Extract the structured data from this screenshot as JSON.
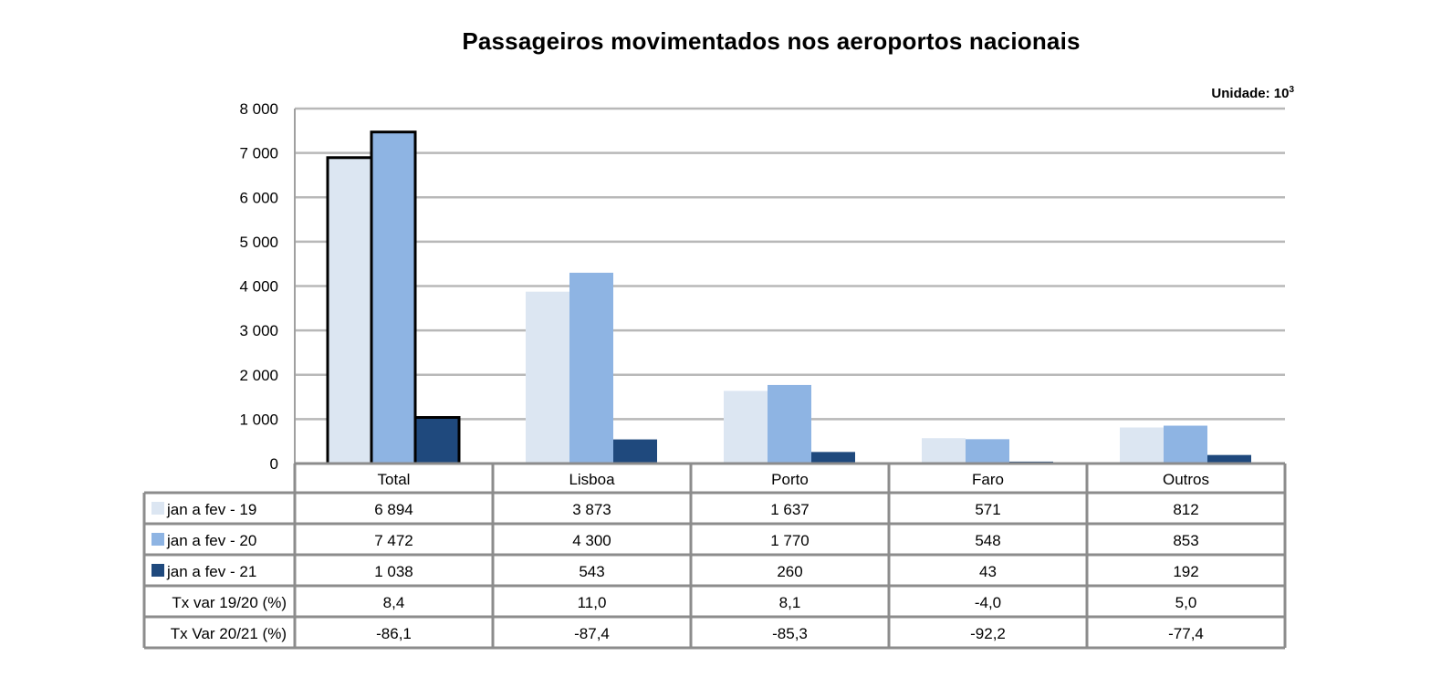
{
  "chart_data": {
    "type": "bar",
    "title": "Passageiros movimentados nos aeroportos nacionais",
    "unit": "Unidade: 10",
    "unit_exponent": "3",
    "categories": [
      "Total",
      "Lisboa",
      "Porto",
      "Faro",
      "Outros"
    ],
    "series": [
      {
        "name": "jan a fev - 19",
        "color": "#dce6f2",
        "values": [
          6894,
          3873,
          1637,
          571,
          812
        ]
      },
      {
        "name": "jan a fev - 20",
        "color": "#8eb4e3",
        "values": [
          7472,
          4300,
          1770,
          548,
          853
        ]
      },
      {
        "name": "jan a fev - 21",
        "color": "#1f497d",
        "values": [
          1038,
          543,
          260,
          43,
          192
        ]
      }
    ],
    "ylim": [
      0,
      8000
    ],
    "yticks": [
      0,
      1000,
      2000,
      3000,
      4000,
      5000,
      6000,
      7000,
      8000
    ],
    "ytick_labels": [
      "0",
      "1 000",
      "2 000",
      "3 000",
      "4 000",
      "5 000",
      "6 000",
      "7 000",
      "8 000"
    ],
    "grid": true,
    "data_table": {
      "rows": [
        {
          "label": "jan a fev - 19",
          "swatch": "#dce6f2",
          "cells": [
            "6 894",
            "3 873",
            "1 637",
            "571",
            "812"
          ]
        },
        {
          "label": "jan a fev - 20",
          "swatch": "#8eb4e3",
          "cells": [
            "7 472",
            "4 300",
            "1 770",
            "548",
            "853"
          ]
        },
        {
          "label": "jan a fev - 21",
          "swatch": "#1f497d",
          "cells": [
            "1 038",
            "543",
            "260",
            "43",
            "192"
          ]
        },
        {
          "label": "Tx var 19/20 (%)",
          "swatch": null,
          "cells": [
            "8,4",
            "11,0",
            "8,1",
            "-4,0",
            "5,0"
          ]
        },
        {
          "label": "Tx Var 20/21 (%)",
          "swatch": null,
          "cells": [
            "-86,1",
            "-87,4",
            "-85,3",
            "-92,2",
            "-77,4"
          ]
        }
      ]
    },
    "highlighted_category": "Total"
  }
}
